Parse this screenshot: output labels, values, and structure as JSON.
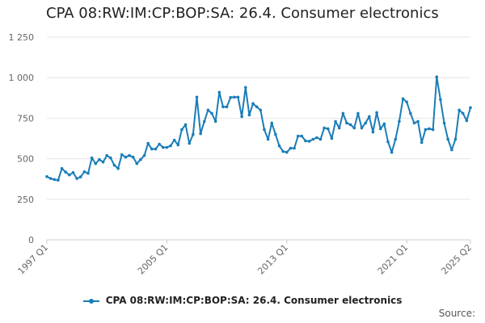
{
  "title": "CPA 08:RW:IM:CP:BOP:SA: 26.4. Consumer electronics",
  "source_label": "Source:",
  "colors": {
    "series": "#1a7db8",
    "grid": "#e6e6e6",
    "axis": "#cccccc",
    "tick_text": "#666666"
  },
  "chart_data": {
    "type": "line",
    "title": "CPA 08:RW:IM:CP:BOP:SA: 26.4. Consumer electronics",
    "xlabel": "",
    "ylabel": "",
    "ylim": [
      0,
      1250
    ],
    "y_ticks": [
      {
        "value": 0,
        "label": "0"
      },
      {
        "value": 250,
        "label": "250"
      },
      {
        "value": 500,
        "label": "500"
      },
      {
        "value": 750,
        "label": "750"
      },
      {
        "value": 1000,
        "label": "1 000"
      },
      {
        "value": 1250,
        "label": "1 250"
      }
    ],
    "x_ticks": [
      {
        "index": 0,
        "label": "1997 Q1"
      },
      {
        "index": 32,
        "label": "2005 Q1"
      },
      {
        "index": 64,
        "label": "2013 Q1"
      },
      {
        "index": 96,
        "label": "2021 Q1"
      },
      {
        "index": 113,
        "label": "2025 Q2"
      }
    ],
    "legend": "bottom-center",
    "grid": true,
    "series": [
      {
        "name": "CPA 08:RW:IM:CP:BOP:SA: 26.4. Consumer electronics",
        "values": [
          390,
          378,
          372,
          368,
          440,
          418,
          400,
          415,
          378,
          388,
          420,
          410,
          505,
          470,
          495,
          480,
          520,
          505,
          460,
          440,
          525,
          510,
          520,
          510,
          470,
          495,
          520,
          595,
          560,
          560,
          590,
          570,
          570,
          580,
          615,
          585,
          680,
          710,
          595,
          650,
          880,
          655,
          730,
          800,
          780,
          730,
          910,
          820,
          820,
          878,
          880,
          880,
          760,
          940,
          770,
          840,
          820,
          800,
          680,
          620,
          720,
          650,
          580,
          545,
          540,
          565,
          565,
          640,
          640,
          610,
          608,
          620,
          630,
          620,
          690,
          685,
          625,
          730,
          690,
          780,
          720,
          710,
          690,
          780,
          690,
          720,
          760,
          665,
          785,
          685,
          715,
          605,
          540,
          620,
          730,
          870,
          850,
          780,
          720,
          730,
          600,
          680,
          685,
          680,
          1005,
          865,
          720,
          620,
          555,
          620,
          800,
          780,
          735,
          815
        ]
      }
    ]
  }
}
